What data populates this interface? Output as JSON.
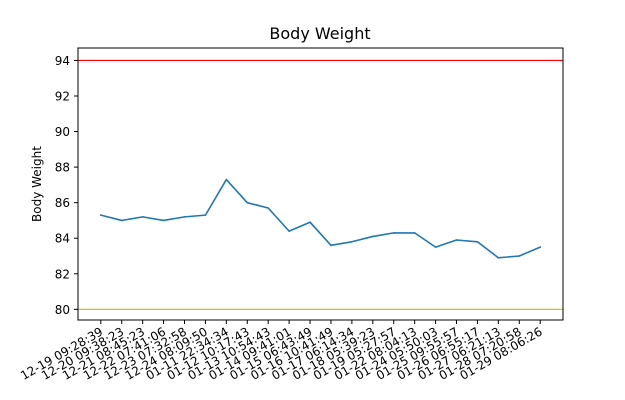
{
  "chart_data": {
    "type": "line",
    "title": "Body Weight",
    "xlabel": "",
    "ylabel": "Body Weight",
    "ylim": [
      79.4,
      94.7
    ],
    "yticks": [
      80,
      82,
      84,
      86,
      88,
      90,
      92,
      94
    ],
    "grid": false,
    "categories": [
      "12-19 09:28:39",
      "12-20 09:38:23",
      "12-21 08:45:23",
      "12-22 07:41:06",
      "12-23 07:32:58",
      "12-24 08:09:50",
      "01-11 22:34:34",
      "01-12 10:17:43",
      "01-13 10:54:43",
      "01-14 09:41:01",
      "01-15 06:43:49",
      "01-16 10:41:49",
      "01-17 06:14:34",
      "01-18 05:39:23",
      "01-19 05:27:57",
      "01-22 08:04:13",
      "01-24 05:50:03",
      "01-25 09:55:57",
      "01-26 06:55:17",
      "01-27 06:21:13",
      "01-28 07:20:58",
      "01-29 08:06:26"
    ],
    "series": [
      {
        "values": [
          85.3,
          85.0,
          85.2,
          85.0,
          85.2,
          85.3,
          87.3,
          86.0,
          85.7,
          84.4,
          84.9,
          83.6,
          83.8,
          84.1,
          84.3,
          84.3,
          83.5,
          83.9,
          83.8,
          82.9,
          83.0,
          83.5
        ],
        "color": "#1f77b4"
      }
    ],
    "reference_lines": [
      {
        "y": 94,
        "color": "#ff0000"
      },
      {
        "y": 80,
        "color": "#bfbf00"
      }
    ]
  }
}
